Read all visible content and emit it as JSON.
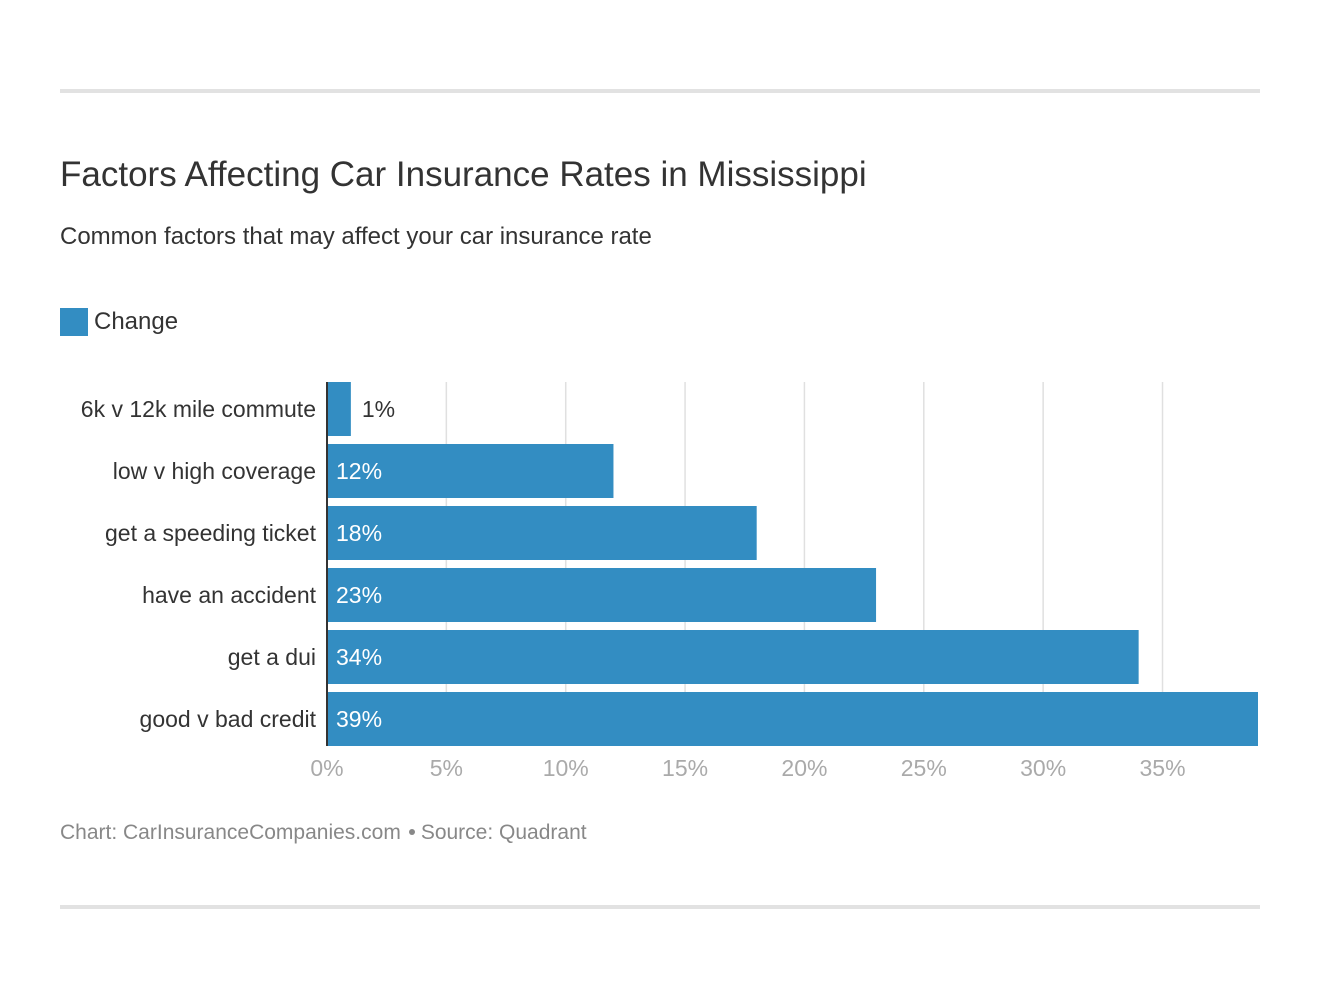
{
  "header": {
    "title": "Factors Affecting Car Insurance Rates in Mississippi",
    "subtitle": "Common factors that may affect your car insurance rate"
  },
  "legend": {
    "label": "Change",
    "color": "#338dc2"
  },
  "chart_data": {
    "type": "bar",
    "orientation": "horizontal",
    "title": "Factors Affecting Car Insurance Rates in Mississippi",
    "subtitle": "Common factors that may affect your car insurance rate",
    "xlabel": "",
    "ylabel": "",
    "categories": [
      "6k v 12k mile commute",
      "low v high coverage",
      "get a speeding ticket",
      "have an accident",
      "get a dui",
      "good v bad credit"
    ],
    "series": [
      {
        "name": "Change",
        "color": "#338dc2",
        "values": [
          1,
          12,
          18,
          23,
          34,
          39
        ],
        "labels": [
          "1%",
          "12%",
          "18%",
          "23%",
          "34%",
          "39%"
        ]
      }
    ],
    "xlim": [
      0,
      39
    ],
    "ticks": [
      0,
      5,
      10,
      15,
      20,
      25,
      30,
      35
    ],
    "tick_labels": [
      "0%",
      "5%",
      "10%",
      "15%",
      "20%",
      "25%",
      "30%",
      "35%"
    ],
    "grid": true,
    "legend_position": "top-left"
  },
  "footer": {
    "chart_credit": "Chart: CarInsuranceCompanies.com",
    "source": "Source: Quadrant"
  }
}
